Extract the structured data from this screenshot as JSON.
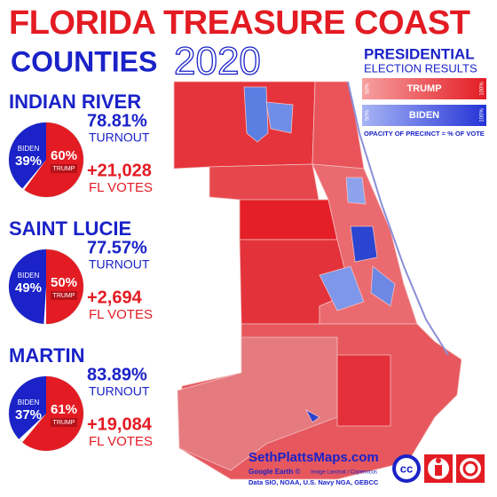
{
  "header": {
    "title": "FLORIDA TREASURE COAST",
    "subtitle": "COUNTIES",
    "year": "2020"
  },
  "legend": {
    "title": "PRESIDENTIAL",
    "subtitle": "ELECTION RESULTS",
    "trump": "TRUMP",
    "biden": "BIDEN",
    "low": "50%",
    "high": "100%",
    "note": "OPACITY OF PRECINCT = % OF VOTE"
  },
  "counties": [
    {
      "name": "INDIAN RIVER",
      "names": [
        "BIDEN",
        "TRUMP"
      ],
      "values": [
        39,
        60
      ],
      "value_labels": [
        "39%",
        "60%"
      ],
      "turnout": "78.81%",
      "turnout_label": "TURNOUT",
      "margin": "+21,028",
      "margin_label": "FL VOTES"
    },
    {
      "name": "SAINT LUCIE",
      "names": [
        "BIDEN",
        "TRUMP"
      ],
      "values": [
        49,
        50
      ],
      "value_labels": [
        "49%",
        "50%"
      ],
      "turnout": "77.57%",
      "turnout_label": "TURNOUT",
      "margin": "+2,694",
      "margin_label": "FL VOTES"
    },
    {
      "name": "MARTIN",
      "names": [
        "BIDEN",
        "TRUMP"
      ],
      "values": [
        37,
        61
      ],
      "value_labels": [
        "37%",
        "61%"
      ],
      "turnout": "83.89%",
      "turnout_label": "TURNOUT",
      "margin": "+19,084",
      "margin_label": "FL VOTES"
    }
  ],
  "footer": {
    "site": "SethPlattsMaps.com",
    "credit1": "Google Earth ©",
    "credit2": "Image Landsat / Copernicus",
    "credit3": "Data SIO, NOAA, U.S. Navy NGA, GEBCC",
    "icon": "cc"
  }
}
